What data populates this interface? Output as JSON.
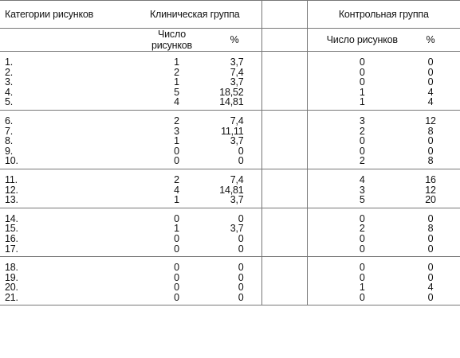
{
  "header": {
    "categories_label": "Категории рисунков",
    "clinical_group": "Клиническая группа",
    "control_group": "Контрольная группа",
    "count_label": "Число рисунков",
    "percent_label": "%"
  },
  "groups": [
    [
      {
        "cat": "1.",
        "cn": "1",
        "cp": "3,7",
        "kn": "0",
        "kp": "0"
      },
      {
        "cat": "2.",
        "cn": "2",
        "cp": "7,4",
        "kn": "0",
        "kp": "0"
      },
      {
        "cat": "3.",
        "cn": "1",
        "cp": "3,7",
        "kn": "0",
        "kp": "0"
      },
      {
        "cat": "4.",
        "cn": "5",
        "cp": "18,52",
        "kn": "1",
        "kp": "4"
      },
      {
        "cat": "5.",
        "cn": "4",
        "cp": "14,81",
        "kn": "1",
        "kp": "4"
      }
    ],
    [
      {
        "cat": "6.",
        "cn": "2",
        "cp": "7,4",
        "kn": "3",
        "kp": "12"
      },
      {
        "cat": "7.",
        "cn": "3",
        "cp": "11,11",
        "kn": "2",
        "kp": "8"
      },
      {
        "cat": "8.",
        "cn": "1",
        "cp": "3,7",
        "kn": "0",
        "kp": "0"
      },
      {
        "cat": "9.",
        "cn": "0",
        "cp": "0",
        "kn": "0",
        "kp": "0"
      },
      {
        "cat": "10.",
        "cn": "0",
        "cp": "0",
        "kn": "2",
        "kp": "8"
      }
    ],
    [
      {
        "cat": "11.",
        "cn": "2",
        "cp": "7,4",
        "kn": "4",
        "kp": "16"
      },
      {
        "cat": "12.",
        "cn": "4",
        "cp": "14,81",
        "kn": "3",
        "kp": "12"
      },
      {
        "cat": "13.",
        "cn": "1",
        "cp": "3,7",
        "kn": "5",
        "kp": "20"
      }
    ],
    [
      {
        "cat": "14.",
        "cn": "0",
        "cp": "0",
        "kn": "0",
        "kp": "0"
      },
      {
        "cat": "15.",
        "cn": "1",
        "cp": "3,7",
        "kn": "2",
        "kp": "8"
      },
      {
        "cat": "16.",
        "cn": "0",
        "cp": "0",
        "kn": "0",
        "kp": "0"
      },
      {
        "cat": "17.",
        "cn": "0",
        "cp": "0",
        "kn": "0",
        "kp": "0"
      }
    ],
    [
      {
        "cat": "18.",
        "cn": "0",
        "cp": "0",
        "kn": "0",
        "kp": "0"
      },
      {
        "cat": "19.",
        "cn": "0",
        "cp": "0",
        "kn": "0",
        "kp": "0"
      },
      {
        "cat": "20.",
        "cn": "0",
        "cp": "0",
        "kn": "1",
        "kp": "4"
      },
      {
        "cat": "21.",
        "cn": "0",
        "cp": "0",
        "kn": "0",
        "kp": "0"
      }
    ]
  ]
}
